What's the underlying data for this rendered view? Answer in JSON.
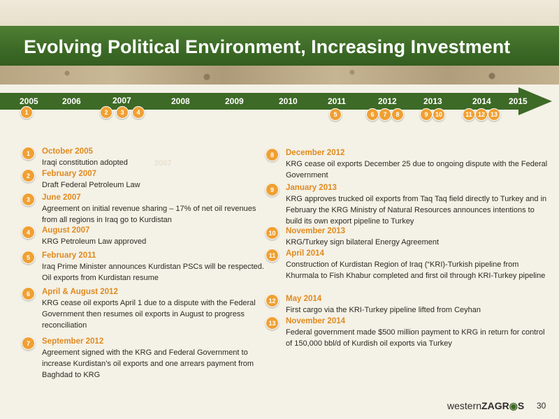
{
  "slide": {
    "title": "Evolving Political Environment, Increasing Investment",
    "page_number": "30",
    "logo": {
      "part1": "western",
      "part2": "ZAGR",
      "part3": "S"
    }
  },
  "timeline": {
    "years": [
      "2005",
      "2006",
      "2007",
      "2008",
      "2009",
      "2010",
      "2011",
      "2012",
      "2013",
      "2014",
      "2015"
    ],
    "markers": [
      "1",
      "2",
      "3",
      "4",
      "5",
      "6",
      "7",
      "8",
      "9",
      "10",
      "11",
      "12",
      "13"
    ],
    "ghost_year": "2007"
  },
  "events_left": [
    {
      "num": "1",
      "date": "October 2005",
      "desc": "Iraqi constitution adopted"
    },
    {
      "num": "2",
      "date": "February 2007",
      "desc": "Draft Federal Petroleum Law"
    },
    {
      "num": "3",
      "date": "June 2007",
      "desc": "Agreement on initial revenue sharing – 17% of net oil revenues from all regions in Iraq go to Kurdistan"
    },
    {
      "num": "4",
      "date": "August 2007",
      "desc": "KRG Petroleum Law approved"
    },
    {
      "num": "5",
      "date": "February 2011",
      "desc": "Iraq Prime Minister announces Kurdistan PSCs will be respected. Oil exports from Kurdistan resume"
    },
    {
      "num": "6",
      "date": "April & August  2012",
      "desc": "KRG cease oil exports April 1 due to a dispute with the Federal Government then resumes oil exports in August to progress reconciliation"
    },
    {
      "num": "7",
      "date": "September 2012",
      "desc": "Agreement signed with the KRG and Federal Government to increase Kurdistan’s oil exports and one arrears payment from Baghdad to KRG"
    }
  ],
  "events_right": [
    {
      "num": "8",
      "date": "December 2012",
      "desc": "KRG cease oil exports December 25 due to ongoing dispute with the Federal Government"
    },
    {
      "num": "9",
      "date": "January 2013",
      "desc": "KRG approves trucked oil exports from Taq Taq field directly to Turkey and in February the KRG Ministry of Natural Resources announces intentions to build its own export pipeline to Turkey"
    },
    {
      "num": "10",
      "date": "November 2013",
      "desc": "KRG/Turkey sign bilateral Energy Agreement"
    },
    {
      "num": "11",
      "date": "April 2014",
      "desc": "Construction of Kurdistan Region of Iraq (“KRI)-Turkish pipeline from Khurmala to Fish Khabur completed and first oil through KRI-Turkey pipeline"
    },
    {
      "num": "12",
      "date": "May 2014",
      "desc": "First cargo via the KRI-Turkey pipeline lifted from Ceyhan"
    },
    {
      "num": "13",
      "date": "November 2014",
      "desc": "Federal government made $500 million payment to KRG in return for control of 150,000 bbl/d of Kurdish oil exports via Turkey"
    }
  ],
  "colors": {
    "accent_green": "#3d6a26",
    "marker_orange": "#f0a033",
    "date_orange": "#e08a1e"
  }
}
